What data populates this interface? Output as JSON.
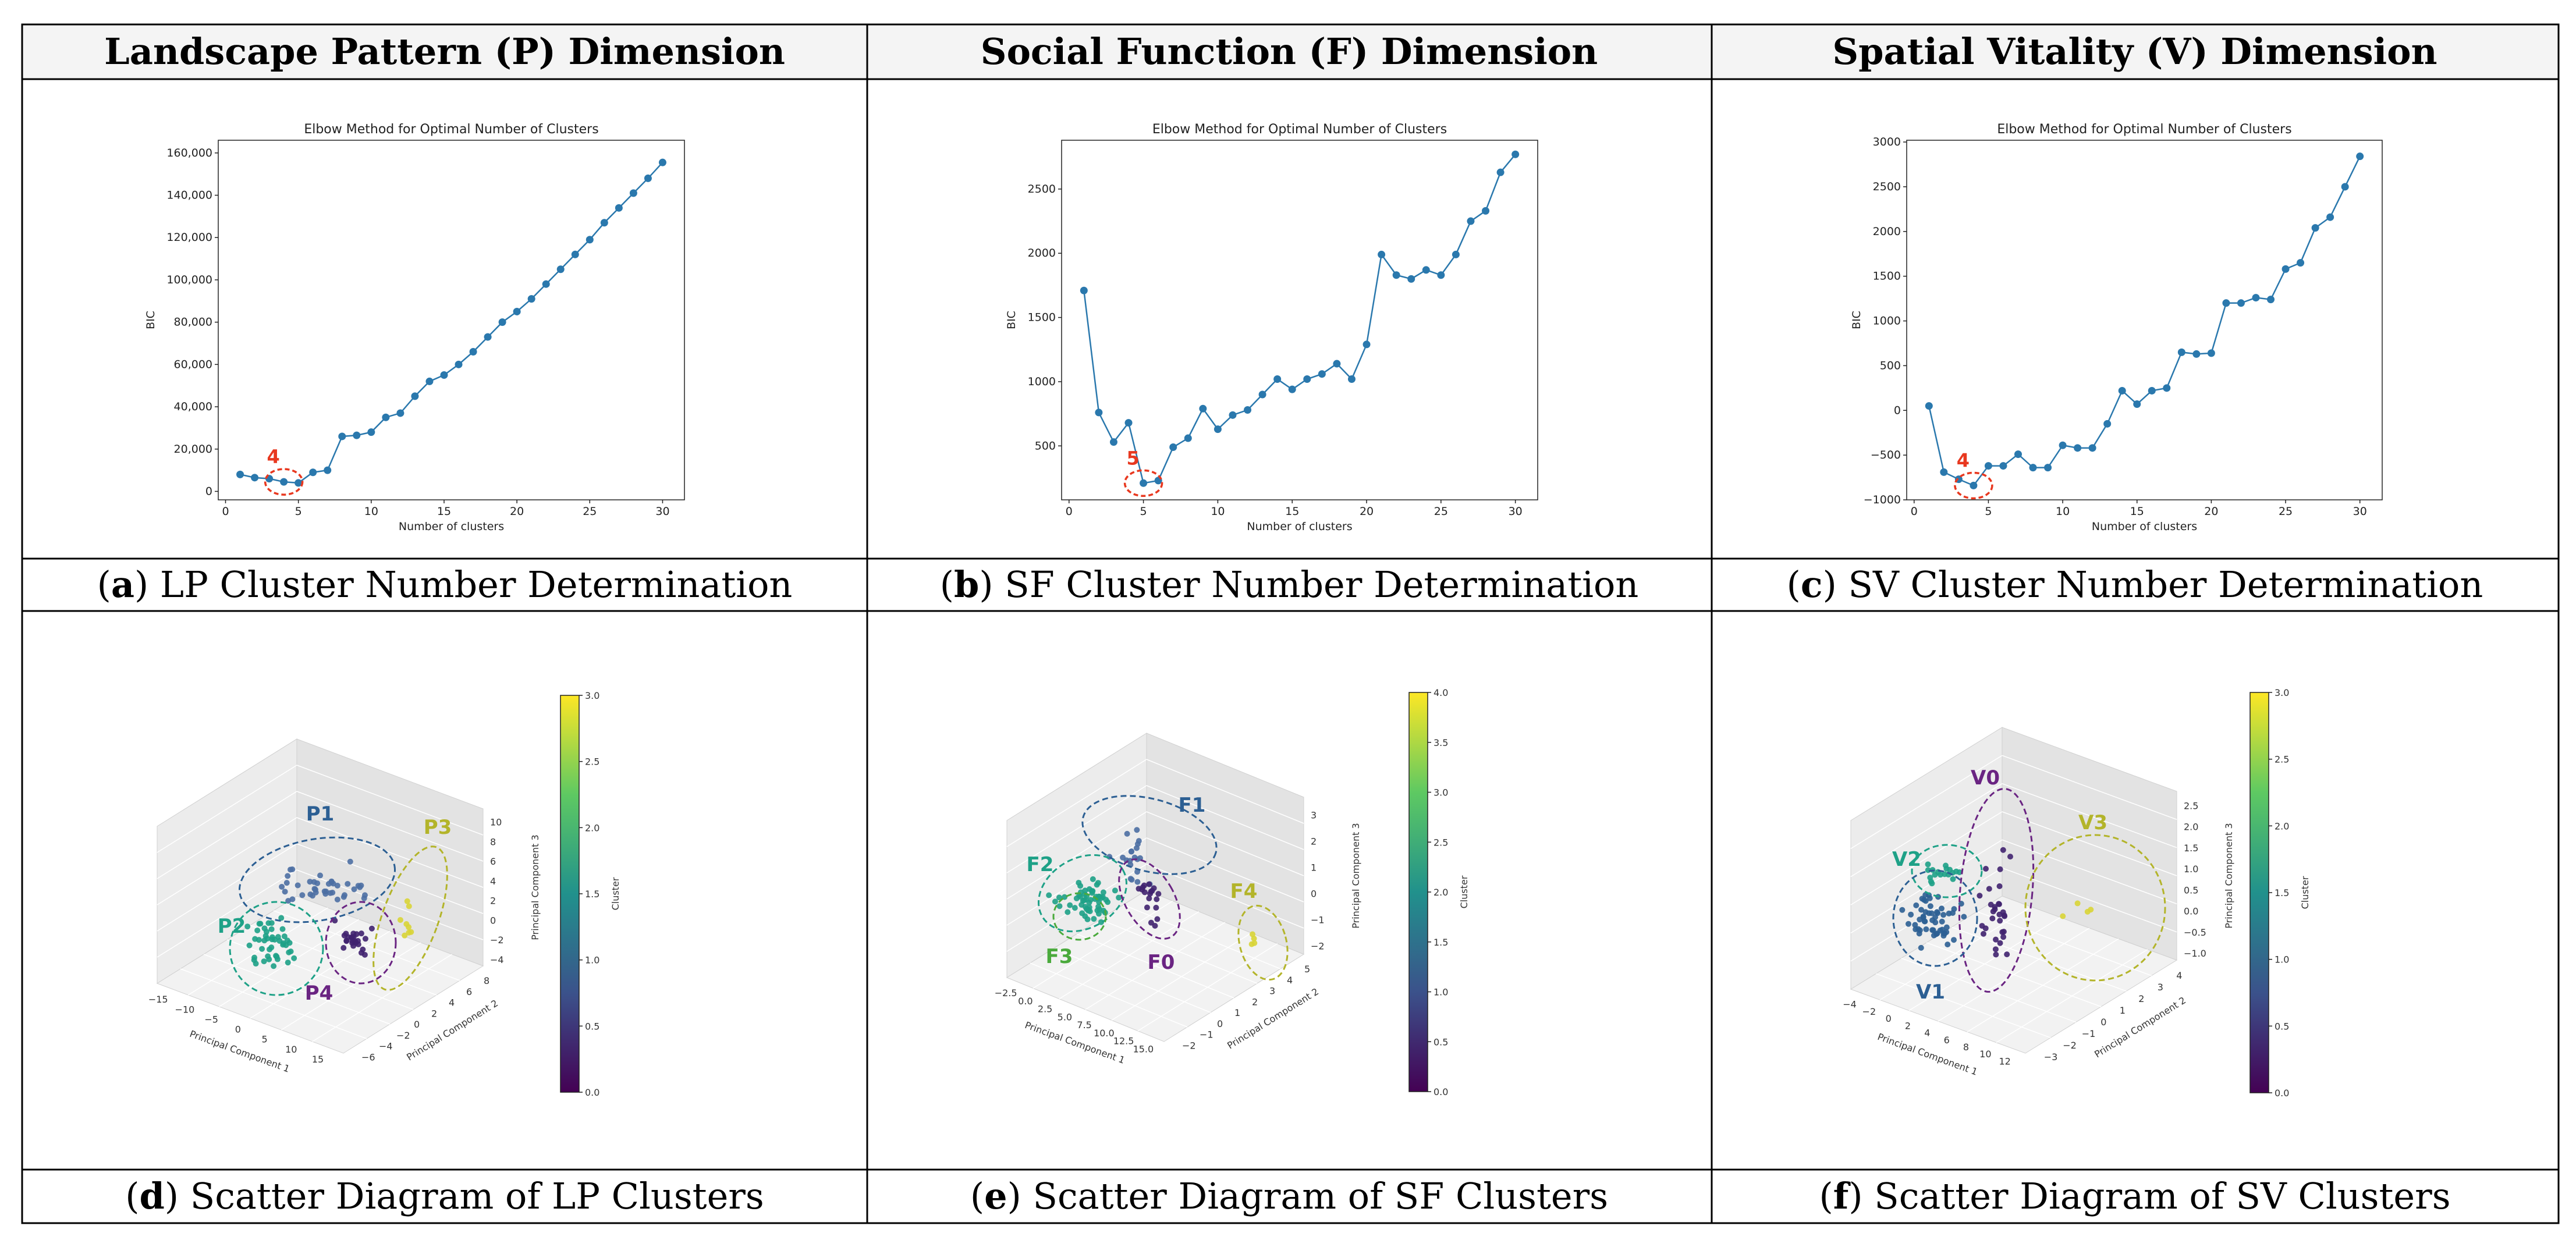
{
  "headers": [
    "Landscape Pattern (P) Dimension",
    "Social Function (F) Dimension",
    "Spatial Vitality (V) Dimension"
  ],
  "captions": [
    {
      "letter": "a",
      "text": "LP Cluster Number Determination"
    },
    {
      "letter": "b",
      "text": "SF Cluster Number Determination"
    },
    {
      "letter": "c",
      "text": "SV Cluster Number Determination"
    },
    {
      "letter": "d",
      "text": "Scatter Diagram of LP Clusters"
    },
    {
      "letter": "e",
      "text": "Scatter Diagram of SF Clusters"
    },
    {
      "letter": "f",
      "text": "Scatter Diagram of SV Clusters"
    }
  ],
  "colors": {
    "line": "#2a78ad",
    "marker": "#e8381f"
  },
  "chart_data": [
    {
      "type": "line",
      "title": "Elbow Method for Optimal Number of Clusters",
      "xlabel": "Number of clusters",
      "ylabel": "BIC",
      "x": [
        1,
        2,
        3,
        4,
        5,
        6,
        7,
        8,
        9,
        10,
        11,
        12,
        13,
        14,
        15,
        16,
        17,
        18,
        19,
        20,
        21,
        22,
        23,
        24,
        25,
        26,
        27,
        28,
        29,
        30
      ],
      "values": [
        8000,
        6500,
        6000,
        4500,
        4000,
        9000,
        10000,
        26000,
        26500,
        28000,
        35000,
        37000,
        45000,
        52000,
        55000,
        60000,
        66000,
        73000,
        80000,
        85000,
        91000,
        98000,
        105000,
        112000,
        119000,
        127000,
        134000,
        141000,
        148000,
        155500
      ],
      "xticks": [
        0,
        5,
        10,
        15,
        20,
        25,
        30
      ],
      "yticks": [
        0,
        20000,
        40000,
        60000,
        80000,
        100000,
        120000,
        140000,
        160000
      ],
      "ytick_labels": [
        "0",
        "20,000",
        "40,000",
        "60,000",
        "80,000",
        "100,000",
        "120,000",
        "140,000",
        "160,000"
      ],
      "xlim": [
        -0.5,
        31.5
      ],
      "ylim": [
        -4000,
        166000
      ],
      "optimal": 4,
      "optimal_label": "4"
    },
    {
      "type": "line",
      "title": "Elbow Method for Optimal Number of Clusters",
      "xlabel": "Number of clusters",
      "ylabel": "BIC",
      "x": [
        1,
        2,
        3,
        4,
        5,
        6,
        7,
        8,
        9,
        10,
        11,
        12,
        13,
        14,
        15,
        16,
        17,
        18,
        19,
        20,
        21,
        22,
        23,
        24,
        25,
        26,
        27,
        28,
        29,
        30
      ],
      "values": [
        1710,
        760,
        530,
        680,
        210,
        230,
        490,
        560,
        790,
        630,
        740,
        780,
        900,
        1020,
        940,
        1020,
        1060,
        1140,
        1020,
        1290,
        1990,
        1830,
        1800,
        1870,
        1830,
        1990,
        2250,
        2330,
        2630,
        2770
      ],
      "xticks": [
        0,
        5,
        10,
        15,
        20,
        25,
        30
      ],
      "yticks": [
        500,
        1000,
        1500,
        2000,
        2500
      ],
      "ytick_labels": [
        "500",
        "1000",
        "1500",
        "2000",
        "2500"
      ],
      "xlim": [
        -0.5,
        31.5
      ],
      "ylim": [
        80,
        2880
      ],
      "optimal": 5,
      "optimal_label": "5"
    },
    {
      "type": "line",
      "title": "Elbow Method for Optimal Number of Clusters",
      "xlabel": "Number of clusters",
      "ylabel": "BIC",
      "x": [
        1,
        2,
        3,
        4,
        5,
        6,
        7,
        8,
        9,
        10,
        11,
        12,
        13,
        14,
        15,
        16,
        17,
        18,
        19,
        20,
        21,
        22,
        23,
        24,
        25,
        26,
        27,
        28,
        29,
        30
      ],
      "values": [
        50,
        -690,
        -770,
        -840,
        -620,
        -620,
        -490,
        -640,
        -640,
        -390,
        -420,
        -420,
        -150,
        220,
        70,
        220,
        250,
        650,
        630,
        640,
        1200,
        1200,
        1260,
        1240,
        1580,
        1650,
        2040,
        2160,
        2500,
        2840
      ],
      "xticks": [
        0,
        5,
        10,
        15,
        20,
        25,
        30
      ],
      "yticks": [
        -1000,
        -500,
        0,
        500,
        1000,
        1500,
        2000,
        2500,
        3000
      ],
      "ytick_labels": [
        "−1000",
        "−500",
        "0",
        "500",
        "1000",
        "1500",
        "2000",
        "2500",
        "3000"
      ],
      "xlim": [
        -0.5,
        31.5
      ],
      "ylim": [
        -1000,
        3020
      ],
      "optimal": 4,
      "optimal_label": "4"
    },
    {
      "type": "scatter",
      "xlabel": "Principal Component 1",
      "ylabel": "Principal Component 2",
      "zlabel": "Principal Component 3",
      "colorbar_label": "Cluster",
      "colorbar_ticks": [
        "0.0",
        "0.5",
        "1.0",
        "1.5",
        "2.0",
        "2.5",
        "3.0"
      ],
      "xticks": [
        "−15",
        "−10",
        "−5",
        "0",
        "5",
        "10",
        "15"
      ],
      "yticks": [
        "−6",
        "−4",
        "−2",
        "0",
        "2",
        "4",
        "6",
        "8"
      ],
      "zticks": [
        "−4",
        "−2",
        "0",
        "2",
        "4",
        "6",
        "8",
        "10"
      ],
      "clusters": [
        {
          "label": "P1",
          "color": "#2c5f93"
        },
        {
          "label": "P2",
          "color": "#1ea187"
        },
        {
          "label": "P3",
          "color": "#b3b42a"
        },
        {
          "label": "P4",
          "color": "#6a2482"
        }
      ]
    },
    {
      "type": "scatter",
      "xlabel": "Principal Component 1",
      "ylabel": "Principal Component 2",
      "zlabel": "Principal Component 3",
      "colorbar_label": "Cluster",
      "colorbar_ticks": [
        "0.0",
        "0.5",
        "1.0",
        "1.5",
        "2.0",
        "2.5",
        "3.0",
        "3.5",
        "4.0"
      ],
      "xticks": [
        "−2.5",
        "0.0",
        "2.5",
        "5.0",
        "7.5",
        "10.0",
        "12.5",
        "15.0"
      ],
      "yticks": [
        "−2",
        "−1",
        "0",
        "1",
        "2",
        "3",
        "4",
        "5"
      ],
      "zticks": [
        "−2",
        "−1",
        "0",
        "1",
        "2",
        "3"
      ],
      "clusters": [
        {
          "label": "F1",
          "color": "#2c5f93"
        },
        {
          "label": "F2",
          "color": "#1ea187"
        },
        {
          "label": "F3",
          "color": "#4aaa3c"
        },
        {
          "label": "F0",
          "color": "#6a2482"
        },
        {
          "label": "F4",
          "color": "#b3b42a"
        }
      ]
    },
    {
      "type": "scatter",
      "xlabel": "Principal Component 1",
      "ylabel": "Principal Component 2",
      "zlabel": "Principal Component 3",
      "colorbar_label": "Cluster",
      "colorbar_ticks": [
        "0.0",
        "0.5",
        "1.0",
        "1.5",
        "2.0",
        "2.5",
        "3.0"
      ],
      "xticks": [
        "−4",
        "−2",
        "0",
        "2",
        "4",
        "6",
        "8",
        "10",
        "12"
      ],
      "yticks": [
        "−3",
        "−2",
        "−1",
        "0",
        "1",
        "2",
        "3",
        "4"
      ],
      "zticks": [
        "−1.0",
        "−0.5",
        "0.0",
        "0.5",
        "1.0",
        "1.5",
        "2.0",
        "2.5"
      ],
      "clusters": [
        {
          "label": "V0",
          "color": "#6a2482"
        },
        {
          "label": "V2",
          "color": "#1ea187"
        },
        {
          "label": "V3",
          "color": "#b3b42a"
        },
        {
          "label": "V1",
          "color": "#2c5f93"
        }
      ]
    }
  ]
}
